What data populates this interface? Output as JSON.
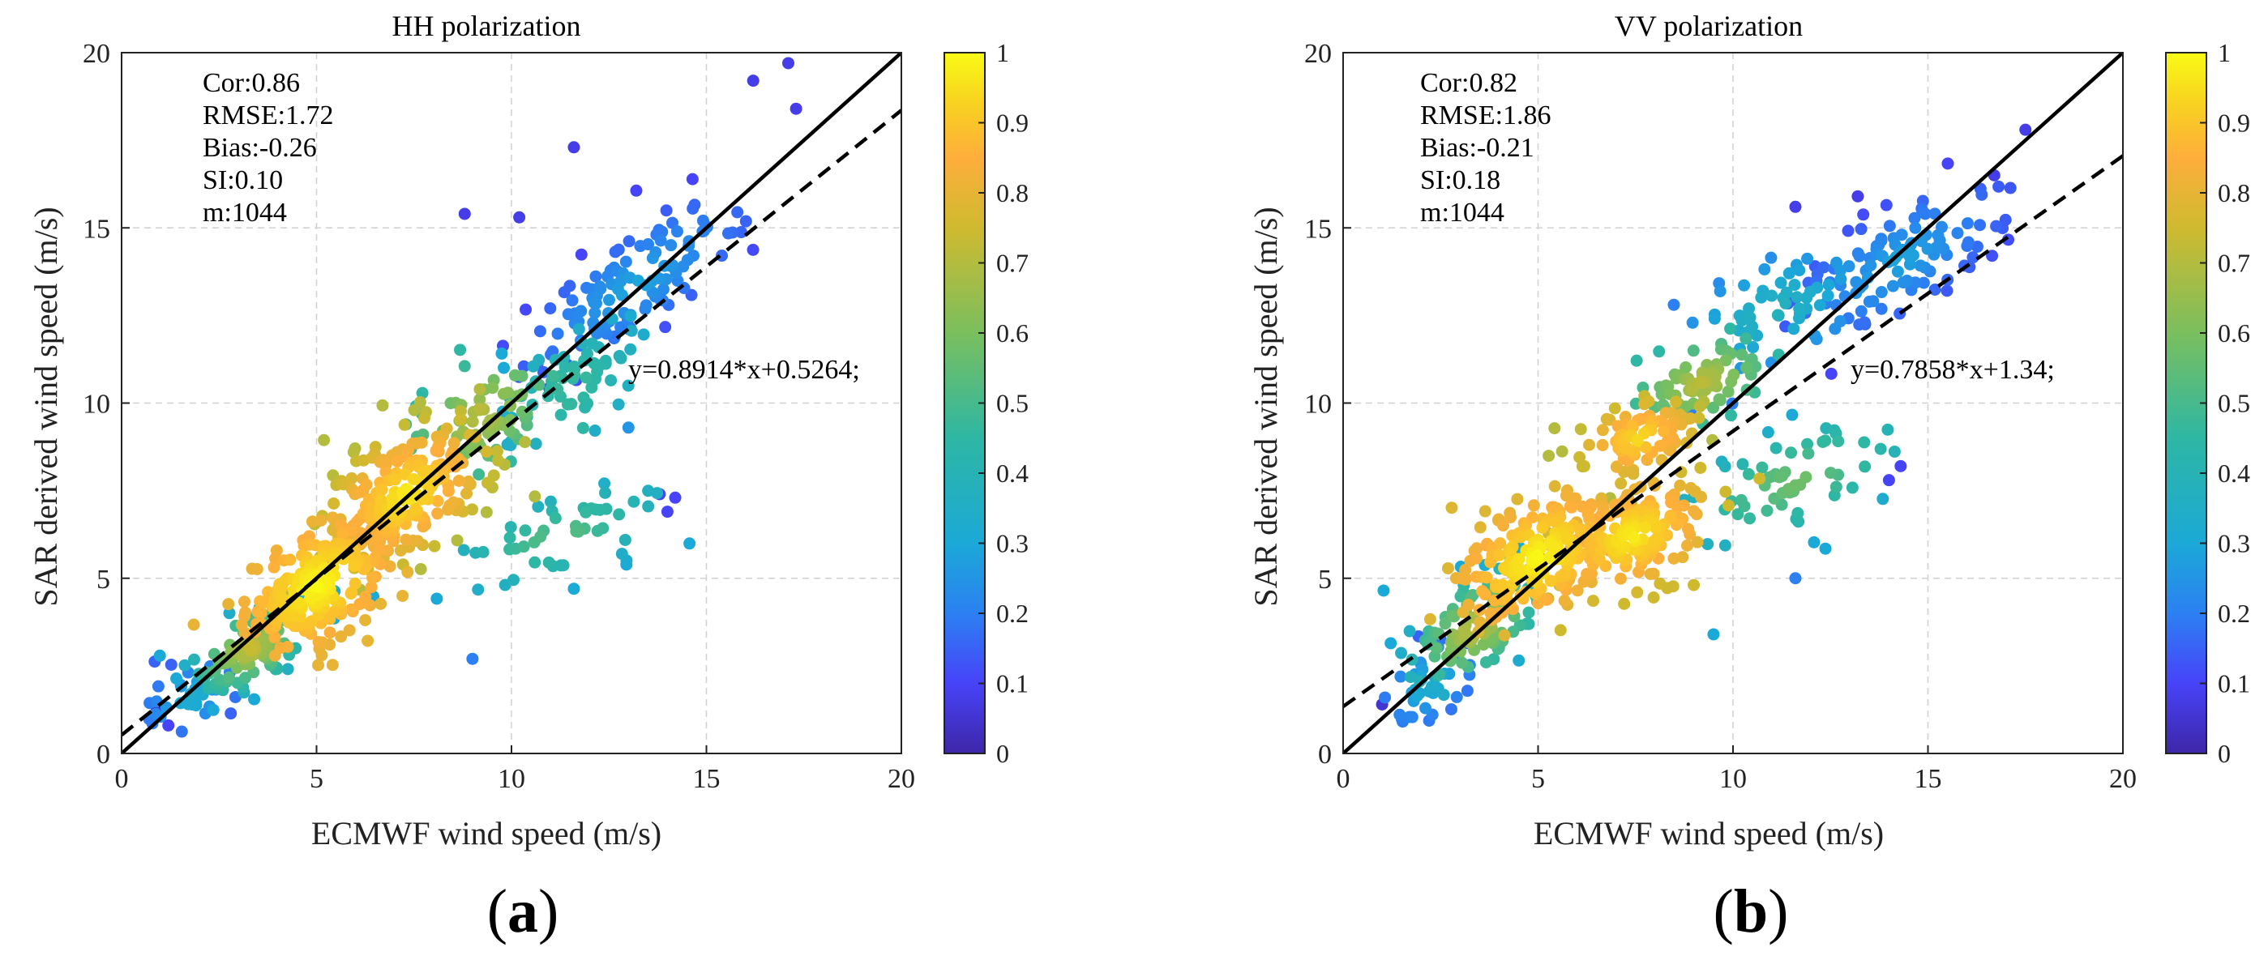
{
  "colors": {
    "colormap": [
      "#3e26a8",
      "#4743f8",
      "#2c80f2",
      "#1ba9d7",
      "#2eb7a4",
      "#7abf5e",
      "#cfba2f",
      "#feae3b",
      "#f8d320",
      "#f9fb15"
    ],
    "fit_line": "#000000",
    "identity_line": "#000000"
  },
  "chart_data": [
    {
      "type": "scatter",
      "panel_label": "a",
      "title": "HH polarization",
      "xlabel": "ECMWF wind speed (m/s)",
      "ylabel": "SAR derived wind speed (m/s)",
      "xlim": [
        0,
        20
      ],
      "ylim": [
        0,
        20
      ],
      "xticks": [
        "0",
        "5",
        "10",
        "15",
        "20"
      ],
      "yticks": [
        "0",
        "5",
        "10",
        "15",
        "20"
      ],
      "grid": true,
      "colorbar": {
        "range": [
          0,
          1
        ],
        "ticks": [
          "0",
          "0.1",
          "0.2",
          "0.3",
          "0.4",
          "0.5",
          "0.6",
          "0.7",
          "0.8",
          "0.9",
          "1"
        ]
      },
      "stats": [
        "Cor:0.86",
        "RMSE:1.72",
        "Bias:-0.26",
        "SI:0.10",
        "m:1044"
      ],
      "fit_equation": "y=0.8914*x+0.5264;",
      "fit": {
        "slope": 0.8914,
        "intercept": 0.5264
      },
      "identity_line": {
        "slope": 1,
        "intercept": 0
      },
      "clusters": [
        {
          "x": 5.0,
          "y": 4.8,
          "sx": 0.9,
          "sy": 0.9,
          "rho": 0.45,
          "n": 220,
          "density": [
            0.8,
            1.0
          ]
        },
        {
          "x": 7.3,
          "y": 7.4,
          "sx": 1.1,
          "sy": 1.1,
          "rho": 0.5,
          "n": 220,
          "density": [
            0.7,
            0.98
          ]
        },
        {
          "x": 3.3,
          "y": 3.0,
          "sx": 0.8,
          "sy": 0.7,
          "rho": 0.5,
          "n": 110,
          "density": [
            0.3,
            0.75
          ]
        },
        {
          "x": 9.2,
          "y": 9.6,
          "sx": 0.9,
          "sy": 0.9,
          "rho": 0.5,
          "n": 70,
          "density": [
            0.45,
            0.72
          ]
        },
        {
          "x": 13.2,
          "y": 13.4,
          "sx": 1.6,
          "sy": 1.4,
          "rho": 0.8,
          "n": 120,
          "density": [
            0.1,
            0.3
          ]
        },
        {
          "x": 11.5,
          "y": 10.4,
          "sx": 1.0,
          "sy": 1.0,
          "rho": 0.5,
          "n": 60,
          "density": [
            0.3,
            0.5
          ]
        },
        {
          "x": 11.2,
          "y": 6.2,
          "sx": 1.5,
          "sy": 0.8,
          "rho": 0.6,
          "n": 50,
          "density": [
            0.3,
            0.55
          ]
        },
        {
          "x": 1.8,
          "y": 1.6,
          "sx": 0.6,
          "sy": 0.5,
          "rho": 0.4,
          "n": 40,
          "density": [
            0.15,
            0.35
          ]
        }
      ],
      "points": [
        {
          "x": 8.8,
          "y": 15.4,
          "density": 0.08
        },
        {
          "x": 10.2,
          "y": 15.3,
          "density": 0.08
        },
        {
          "x": 11.6,
          "y": 17.3,
          "density": 0.08
        },
        {
          "x": 16.2,
          "y": 19.2,
          "density": 0.08
        },
        {
          "x": 17.1,
          "y": 19.7,
          "density": 0.08
        },
        {
          "x": 17.3,
          "y": 18.4,
          "density": 0.08
        },
        {
          "x": 13.8,
          "y": 7.4,
          "density": 0.1
        },
        {
          "x": 14.2,
          "y": 7.3,
          "density": 0.1
        },
        {
          "x": 14.0,
          "y": 6.9,
          "density": 0.1
        },
        {
          "x": 9.0,
          "y": 2.7,
          "density": 0.2
        },
        {
          "x": 11.6,
          "y": 4.7,
          "density": 0.3
        },
        {
          "x": 13.0,
          "y": 9.3,
          "density": 0.25
        },
        {
          "x": 0.9,
          "y": 1.3,
          "density": 0.05
        },
        {
          "x": 1.2,
          "y": 0.8,
          "density": 0.1
        }
      ]
    },
    {
      "type": "scatter",
      "panel_label": "b",
      "title": "VV polarization",
      "xlabel": "ECMWF wind speed (m/s)",
      "ylabel": "SAR derived wind speed (m/s)",
      "xlim": [
        0,
        20
      ],
      "ylim": [
        0,
        20
      ],
      "xticks": [
        "0",
        "5",
        "10",
        "15",
        "20"
      ],
      "yticks": [
        "0",
        "5",
        "10",
        "15",
        "20"
      ],
      "grid": true,
      "colorbar": {
        "range": [
          0,
          1
        ],
        "ticks": [
          "0",
          "0.1",
          "0.2",
          "0.3",
          "0.4",
          "0.5",
          "0.6",
          "0.7",
          "0.8",
          "0.9",
          "1"
        ]
      },
      "stats": [
        "Cor:0.82",
        "RMSE:1.86",
        "Bias:-0.21",
        "SI:0.18",
        "m:1044"
      ],
      "fit_equation": "y=0.7858*x+1.34;",
      "fit": {
        "slope": 0.7858,
        "intercept": 1.34
      },
      "identity_line": {
        "slope": 1,
        "intercept": 0
      },
      "clusters": [
        {
          "x": 5.0,
          "y": 5.6,
          "sx": 1.0,
          "sy": 0.9,
          "rho": 0.45,
          "n": 200,
          "density": [
            0.78,
            1.0
          ]
        },
        {
          "x": 7.4,
          "y": 6.2,
          "sx": 1.0,
          "sy": 0.8,
          "rho": 0.4,
          "n": 170,
          "density": [
            0.75,
            0.98
          ]
        },
        {
          "x": 7.6,
          "y": 9.0,
          "sx": 0.8,
          "sy": 0.6,
          "rho": 0.3,
          "n": 90,
          "density": [
            0.7,
            0.95
          ]
        },
        {
          "x": 9.2,
          "y": 10.6,
          "sx": 0.8,
          "sy": 0.6,
          "rho": 0.4,
          "n": 70,
          "density": [
            0.45,
            0.72
          ]
        },
        {
          "x": 3.4,
          "y": 3.6,
          "sx": 0.9,
          "sy": 0.9,
          "rho": 0.5,
          "n": 100,
          "density": [
            0.3,
            0.75
          ]
        },
        {
          "x": 14.2,
          "y": 14.0,
          "sx": 1.5,
          "sy": 1.2,
          "rho": 0.7,
          "n": 110,
          "density": [
            0.1,
            0.3
          ]
        },
        {
          "x": 11.0,
          "y": 12.6,
          "sx": 1.2,
          "sy": 0.9,
          "rho": 0.5,
          "n": 60,
          "density": [
            0.2,
            0.4
          ]
        },
        {
          "x": 11.6,
          "y": 7.8,
          "sx": 1.6,
          "sy": 1.0,
          "rho": 0.6,
          "n": 60,
          "density": [
            0.3,
            0.6
          ]
        },
        {
          "x": 2.2,
          "y": 2.0,
          "sx": 0.6,
          "sy": 0.6,
          "rho": 0.4,
          "n": 40,
          "density": [
            0.15,
            0.35
          ]
        }
      ],
      "points": [
        {
          "x": 11.6,
          "y": 15.6,
          "density": 0.08
        },
        {
          "x": 16.7,
          "y": 16.5,
          "density": 0.08
        },
        {
          "x": 17.5,
          "y": 17.8,
          "density": 0.08
        },
        {
          "x": 14.3,
          "y": 8.2,
          "density": 0.1
        },
        {
          "x": 14.0,
          "y": 7.8,
          "density": 0.1
        },
        {
          "x": 11.6,
          "y": 5.0,
          "density": 0.2
        },
        {
          "x": 9.5,
          "y": 3.4,
          "density": 0.3
        },
        {
          "x": 1.0,
          "y": 1.4,
          "density": 0.05
        },
        {
          "x": 13.2,
          "y": 15.9,
          "density": 0.08
        }
      ]
    }
  ]
}
